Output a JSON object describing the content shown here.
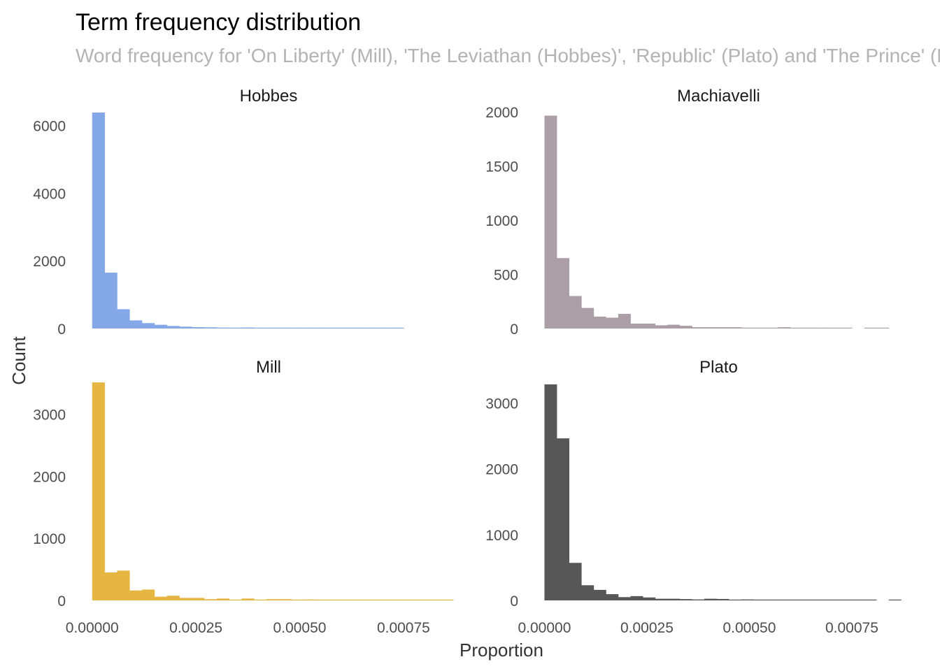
{
  "chart_data": {
    "type": "histogram",
    "title": "Term frequency distribution",
    "subtitle": "Word frequency for 'On Liberty' (Mill), 'The Leviathan (Hobbes)', 'Republic' (Plato) and 'The Prince' (Machiavelli)",
    "xlabel": "Proportion",
    "ylabel": "Count",
    "x_ticks": [
      "0.00000",
      "0.00025",
      "0.00050",
      "0.00075"
    ],
    "x_tick_values": [
      0,
      0.00025,
      0.0005,
      0.00075
    ],
    "grid": false,
    "legend": "none",
    "facets": [
      {
        "name": "Hobbes",
        "color": "#84a7e8",
        "bin_width": 3e-05,
        "xlim": [
          -4e-05,
          0.00089
        ],
        "ylim": [
          0,
          6400
        ],
        "y_ticks": [
          0,
          2000,
          4000,
          6000
        ],
        "bins": [
          {
            "x": 0.0,
            "count": 6380
          },
          {
            "x": 3e-05,
            "count": 1650
          },
          {
            "x": 6e-05,
            "count": 570
          },
          {
            "x": 9e-05,
            "count": 240
          },
          {
            "x": 0.00012,
            "count": 160
          },
          {
            "x": 0.00015,
            "count": 110
          },
          {
            "x": 0.00018,
            "count": 75
          },
          {
            "x": 0.00021,
            "count": 55
          },
          {
            "x": 0.00024,
            "count": 40
          },
          {
            "x": 0.00027,
            "count": 35
          },
          {
            "x": 0.0003,
            "count": 28
          },
          {
            "x": 0.00033,
            "count": 22
          },
          {
            "x": 0.00036,
            "count": 30
          },
          {
            "x": 0.00039,
            "count": 15
          },
          {
            "x": 0.00042,
            "count": 12
          },
          {
            "x": 0.00045,
            "count": 10
          },
          {
            "x": 0.00048,
            "count": 9
          },
          {
            "x": 0.00051,
            "count": 8
          },
          {
            "x": 0.00054,
            "count": 7
          },
          {
            "x": 0.00057,
            "count": 6
          },
          {
            "x": 0.0006,
            "count": 6
          },
          {
            "x": 0.00063,
            "count": 5
          },
          {
            "x": 0.00066,
            "count": 5
          },
          {
            "x": 0.00069,
            "count": 4
          },
          {
            "x": 0.00072,
            "count": 4
          }
        ]
      },
      {
        "name": "Machiavelli",
        "color": "#ab9ea6",
        "bin_width": 3e-05,
        "xlim": [
          -4e-05,
          0.00089
        ],
        "ylim": [
          0,
          2000
        ],
        "y_ticks": [
          0,
          500,
          1000,
          1500,
          2000
        ],
        "bins": [
          {
            "x": 0.0,
            "count": 1965
          },
          {
            "x": 3e-05,
            "count": 650
          },
          {
            "x": 6e-05,
            "count": 300
          },
          {
            "x": 9e-05,
            "count": 190
          },
          {
            "x": 0.00012,
            "count": 110
          },
          {
            "x": 0.00015,
            "count": 100
          },
          {
            "x": 0.00018,
            "count": 135
          },
          {
            "x": 0.00021,
            "count": 45
          },
          {
            "x": 0.00024,
            "count": 45
          },
          {
            "x": 0.00027,
            "count": 30
          },
          {
            "x": 0.0003,
            "count": 35
          },
          {
            "x": 0.00033,
            "count": 25
          },
          {
            "x": 0.00036,
            "count": 12
          },
          {
            "x": 0.00039,
            "count": 12
          },
          {
            "x": 0.00042,
            "count": 12
          },
          {
            "x": 0.00045,
            "count": 12
          },
          {
            "x": 0.00048,
            "count": 8
          },
          {
            "x": 0.00051,
            "count": 8
          },
          {
            "x": 0.00054,
            "count": 8
          },
          {
            "x": 0.00057,
            "count": 12
          },
          {
            "x": 0.0006,
            "count": 4
          },
          {
            "x": 0.00063,
            "count": 8
          },
          {
            "x": 0.00066,
            "count": 4
          },
          {
            "x": 0.00069,
            "count": 4
          },
          {
            "x": 0.00072,
            "count": 2
          },
          {
            "x": 0.00075,
            "count": 0
          },
          {
            "x": 0.00078,
            "count": 4
          },
          {
            "x": 0.00081,
            "count": 4
          }
        ]
      },
      {
        "name": "Mill",
        "color": "#e6b642",
        "bin_width": 3e-05,
        "xlim": [
          -4e-05,
          0.00089
        ],
        "ylim": [
          0,
          3500
        ],
        "y_ticks": [
          0,
          1000,
          2000,
          3000
        ],
        "bins": [
          {
            "x": 0.0,
            "count": 3510
          },
          {
            "x": 3e-05,
            "count": 450
          },
          {
            "x": 6e-05,
            "count": 480
          },
          {
            "x": 9e-05,
            "count": 160
          },
          {
            "x": 0.00012,
            "count": 175
          },
          {
            "x": 0.00015,
            "count": 60
          },
          {
            "x": 0.00018,
            "count": 75
          },
          {
            "x": 0.00021,
            "count": 40
          },
          {
            "x": 0.00024,
            "count": 40
          },
          {
            "x": 0.00027,
            "count": 20
          },
          {
            "x": 0.0003,
            "count": 30
          },
          {
            "x": 0.00033,
            "count": 10
          },
          {
            "x": 0.00036,
            "count": 30
          },
          {
            "x": 0.00039,
            "count": 10
          },
          {
            "x": 0.00042,
            "count": 20
          },
          {
            "x": 0.00045,
            "count": 20
          },
          {
            "x": 0.00048,
            "count": 10
          },
          {
            "x": 0.00051,
            "count": 15
          },
          {
            "x": 0.00054,
            "count": 8
          },
          {
            "x": 0.00057,
            "count": 8
          },
          {
            "x": 0.0006,
            "count": 6
          },
          {
            "x": 0.00063,
            "count": 6
          },
          {
            "x": 0.00066,
            "count": 5
          },
          {
            "x": 0.00069,
            "count": 5
          },
          {
            "x": 0.00072,
            "count": 4
          },
          {
            "x": 0.00075,
            "count": 4
          },
          {
            "x": 0.00078,
            "count": 3
          },
          {
            "x": 0.00081,
            "count": 3
          },
          {
            "x": 0.00084,
            "count": 3
          }
        ]
      },
      {
        "name": "Plato",
        "color": "#575757",
        "bin_width": 3e-05,
        "xlim": [
          -4e-05,
          0.00089
        ],
        "ylim": [
          0,
          3300
        ],
        "y_ticks": [
          0,
          1000,
          2000,
          3000
        ],
        "bins": [
          {
            "x": 0.0,
            "count": 3280
          },
          {
            "x": 3e-05,
            "count": 2460
          },
          {
            "x": 6e-05,
            "count": 570
          },
          {
            "x": 9e-05,
            "count": 230
          },
          {
            "x": 0.00012,
            "count": 160
          },
          {
            "x": 0.00015,
            "count": 95
          },
          {
            "x": 0.00018,
            "count": 50
          },
          {
            "x": 0.00021,
            "count": 65
          },
          {
            "x": 0.00024,
            "count": 45
          },
          {
            "x": 0.00027,
            "count": 25
          },
          {
            "x": 0.0003,
            "count": 25
          },
          {
            "x": 0.00033,
            "count": 20
          },
          {
            "x": 0.00036,
            "count": 15
          },
          {
            "x": 0.00039,
            "count": 25
          },
          {
            "x": 0.00042,
            "count": 22
          },
          {
            "x": 0.00045,
            "count": 12
          },
          {
            "x": 0.00048,
            "count": 15
          },
          {
            "x": 0.00051,
            "count": 10
          },
          {
            "x": 0.00054,
            "count": 8
          },
          {
            "x": 0.00057,
            "count": 8
          },
          {
            "x": 0.0006,
            "count": 6
          },
          {
            "x": 0.00063,
            "count": 6
          },
          {
            "x": 0.00066,
            "count": 5
          },
          {
            "x": 0.00069,
            "count": 5
          },
          {
            "x": 0.00072,
            "count": 4
          },
          {
            "x": 0.00075,
            "count": 4
          },
          {
            "x": 0.00078,
            "count": 3
          },
          {
            "x": 0.00081,
            "count": 0
          },
          {
            "x": 0.00084,
            "count": 3
          }
        ]
      }
    ]
  }
}
